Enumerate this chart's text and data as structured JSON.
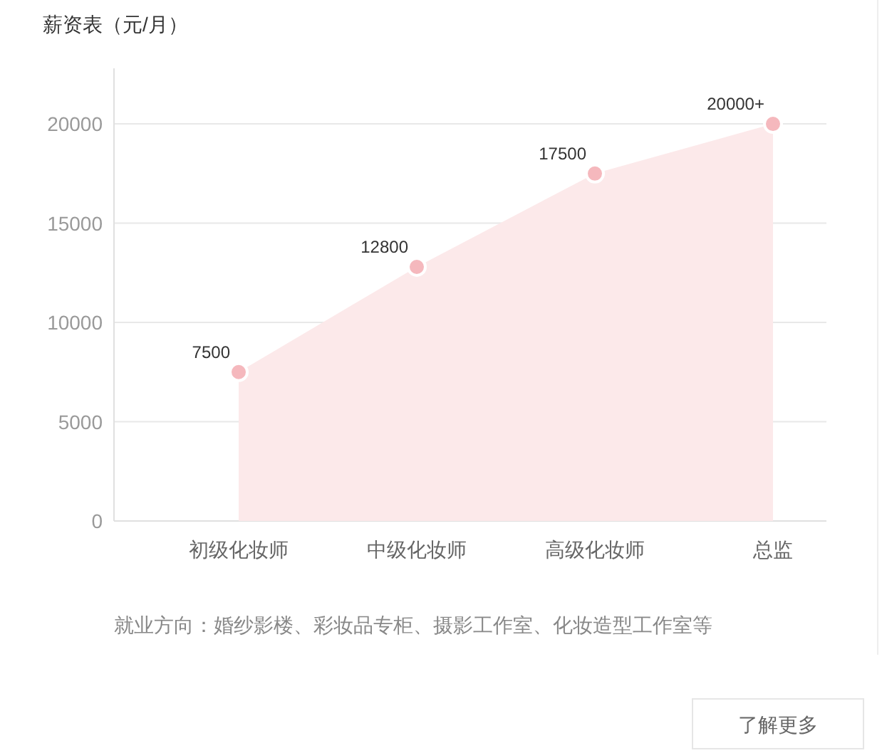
{
  "chart_data": {
    "type": "area",
    "title": "薪资表（元/月）",
    "categories": [
      "初级化妆师",
      "中级化妆师",
      "高级化妆师",
      "总监"
    ],
    "series": [
      {
        "color": "#fce9ea",
        "values": [
          7500,
          12800,
          17500,
          20000
        ],
        "value_labels": [
          "7500",
          "12800",
          "17500",
          "20000+"
        ]
      }
    ],
    "marker": "circle",
    "ylim": [
      0,
      22800
    ],
    "yticks": [
      0,
      5000,
      10000,
      15000,
      20000
    ],
    "grid": "y",
    "annotations": [
      "就业方向：婚纱影楼、彩妆品专柜、摄影工作室、化妆造型工作室等",
      "了解更多"
    ]
  }
}
